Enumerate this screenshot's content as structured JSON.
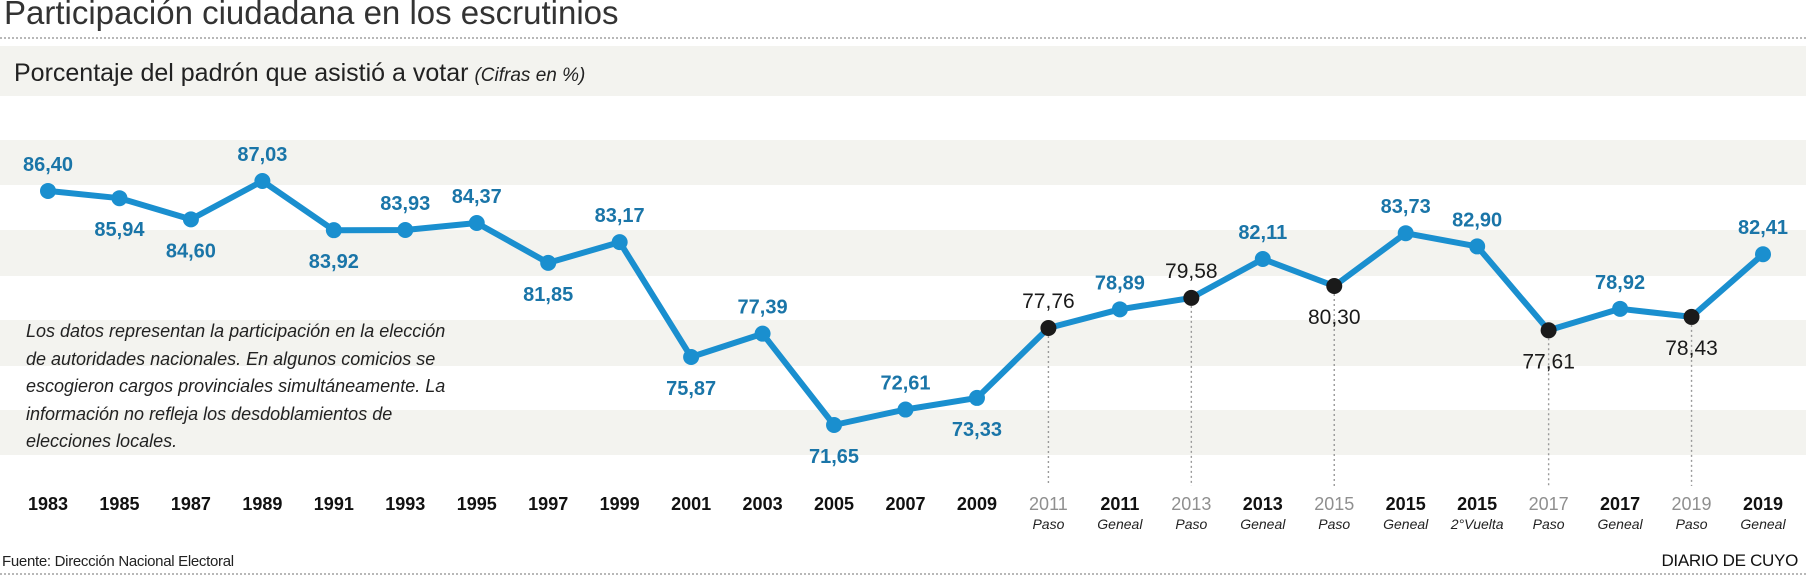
{
  "title": "Participación ciudadana en los escrutinios",
  "subtitle": "Porcentaje del padrón que asistió a votar",
  "subtitle_note": "(Cifras en %)",
  "note": "Los datos representan la participación en la elección de autoridades nacionales. En algunos comicios se escogieron cargos provinciales simultáneamente. La información no refleja los desdoblamientos de elecciones locales.",
  "source": "Fuente: Dirección Nacional Electoral",
  "brand": "DIARIO DE CUYO",
  "colors": {
    "line": "#1a8fcf",
    "label": "#1a75a8",
    "dark_dot": "#1a1a1a",
    "band": "#f3f3ef"
  },
  "chart_data": {
    "type": "line",
    "title": "Participación ciudadana en los escrutinios",
    "subtitle": "Porcentaje del padrón que asistió a votar (Cifras en %)",
    "xlabel": "",
    "ylabel": "%",
    "grid": false,
    "points": [
      {
        "year": "1983",
        "sub": "",
        "value": 86.4,
        "label": "86,40",
        "kind": "blue",
        "label_pos": "above"
      },
      {
        "year": "1985",
        "sub": "",
        "value": 85.94,
        "label": "85,94",
        "kind": "blue",
        "label_pos": "below"
      },
      {
        "year": "1987",
        "sub": "",
        "value": 84.6,
        "label": "84,60",
        "kind": "blue",
        "label_pos": "below"
      },
      {
        "year": "1989",
        "sub": "",
        "value": 87.03,
        "label": "87,03",
        "kind": "blue",
        "label_pos": "above"
      },
      {
        "year": "1991",
        "sub": "",
        "value": 83.92,
        "label": "83,92",
        "kind": "blue",
        "label_pos": "below"
      },
      {
        "year": "1993",
        "sub": "",
        "value": 83.93,
        "label": "83,93",
        "kind": "blue",
        "label_pos": "above"
      },
      {
        "year": "1995",
        "sub": "",
        "value": 84.37,
        "label": "84,37",
        "kind": "blue",
        "label_pos": "above"
      },
      {
        "year": "1997",
        "sub": "",
        "value": 81.85,
        "label": "81,85",
        "kind": "blue",
        "label_pos": "below"
      },
      {
        "year": "1999",
        "sub": "",
        "value": 83.17,
        "label": "83,17",
        "kind": "blue",
        "label_pos": "above"
      },
      {
        "year": "2001",
        "sub": "",
        "value": 75.87,
        "label": "75,87",
        "kind": "blue",
        "label_pos": "below"
      },
      {
        "year": "2003",
        "sub": "",
        "value": 77.39,
        "label": "77,39",
        "kind": "blue",
        "label_pos": "above"
      },
      {
        "year": "2005",
        "sub": "",
        "value": 71.65,
        "label": "71,65",
        "kind": "blue",
        "label_pos": "below"
      },
      {
        "year": "2007",
        "sub": "",
        "value": 72.61,
        "label": "72,61",
        "kind": "blue",
        "label_pos": "above"
      },
      {
        "year": "2009",
        "sub": "",
        "value": 73.33,
        "label": "73,33",
        "kind": "blue",
        "label_pos": "below"
      },
      {
        "year": "2011",
        "sub": "Paso",
        "value": 77.76,
        "label": "77,76",
        "kind": "paso",
        "label_pos": "above"
      },
      {
        "year": "2011",
        "sub": "Geneal",
        "value": 78.89,
        "label": "78,89",
        "kind": "blue",
        "label_pos": "above"
      },
      {
        "year": "2013",
        "sub": "Paso",
        "value": 79.58,
        "label": "79,58",
        "kind": "paso",
        "label_pos": "above"
      },
      {
        "year": "2013",
        "sub": "Geneal",
        "value": 82.11,
        "label": "82,11",
        "kind": "blue",
        "label_pos": "above"
      },
      {
        "year": "2015",
        "sub": "Paso",
        "value": 80.3,
        "label": "80,30",
        "kind": "paso",
        "label_pos": "below"
      },
      {
        "year": "2015",
        "sub": "Geneal",
        "value": 83.73,
        "label": "83,73",
        "kind": "blue",
        "label_pos": "above"
      },
      {
        "year": "2015",
        "sub": "2°Vuelta",
        "value": 82.9,
        "label": "82,90",
        "kind": "blue",
        "label_pos": "above"
      },
      {
        "year": "2017",
        "sub": "Paso",
        "value": 77.61,
        "label": "77,61",
        "kind": "paso",
        "label_pos": "below"
      },
      {
        "year": "2017",
        "sub": "Geneal",
        "value": 78.92,
        "label": "78,92",
        "kind": "blue",
        "label_pos": "above"
      },
      {
        "year": "2019",
        "sub": "Paso",
        "value": 78.43,
        "label": "78,43",
        "kind": "paso",
        "label_pos": "below"
      },
      {
        "year": "2019",
        "sub": "Geneal",
        "value": 82.41,
        "label": "82,41",
        "kind": "blue",
        "label_pos": "above"
      }
    ]
  }
}
